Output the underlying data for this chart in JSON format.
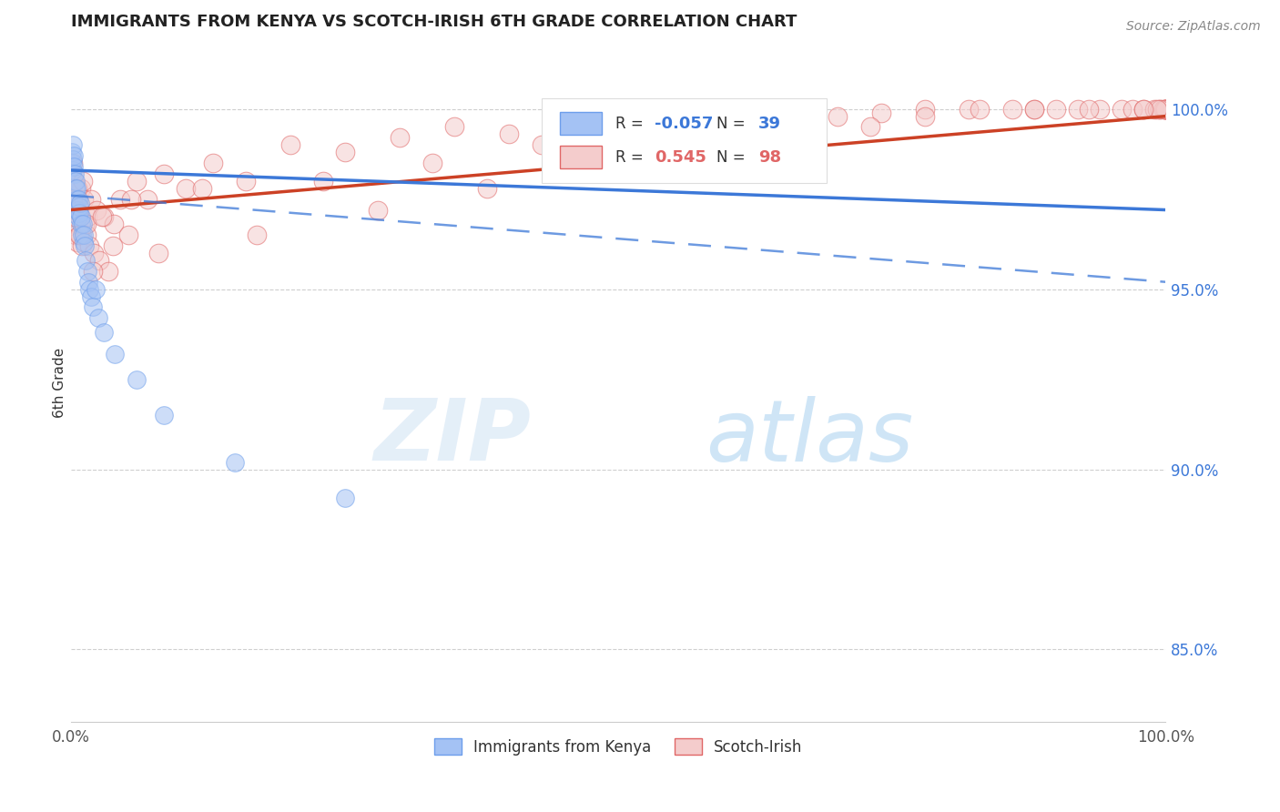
{
  "title": "IMMIGRANTS FROM KENYA VS SCOTCH-IRISH 6TH GRADE CORRELATION CHART",
  "source_text": "Source: ZipAtlas.com",
  "ylabel": "6th Grade",
  "watermark_zip": "ZIP",
  "watermark_atlas": "atlas",
  "x_min": 0.0,
  "x_max": 100.0,
  "y_min": 83.0,
  "y_max": 101.8,
  "y_ticks": [
    85.0,
    90.0,
    95.0,
    100.0
  ],
  "blue_R": -0.057,
  "blue_N": 39,
  "pink_R": 0.545,
  "pink_N": 98,
  "blue_fill": "#a4c2f4",
  "pink_fill": "#f4cccc",
  "blue_edge": "#6d9eeb",
  "pink_edge": "#e06666",
  "blue_line_color": "#3c78d8",
  "pink_line_color": "#cc4125",
  "legend_label_blue": "Immigrants from Kenya",
  "legend_label_pink": "Scotch-Irish",
  "blue_line_x0": 0.0,
  "blue_line_y0": 98.3,
  "blue_line_x1": 100.0,
  "blue_line_y1": 97.2,
  "pink_line_x0": 0.0,
  "pink_line_y0": 97.2,
  "pink_line_x1": 100.0,
  "pink_line_y1": 99.8,
  "dash_x0": 0.0,
  "dash_y0": 97.6,
  "dash_x1": 100.0,
  "dash_y1": 95.2,
  "blue_scatter_x": [
    0.05,
    0.08,
    0.12,
    0.15,
    0.18,
    0.22,
    0.28,
    0.32,
    0.38,
    0.42,
    0.48,
    0.52,
    0.58,
    0.62,
    0.68,
    0.72,
    0.78,
    0.82,
    0.88,
    0.92,
    0.98,
    1.05,
    1.12,
    1.18,
    1.25,
    1.35,
    1.45,
    1.55,
    1.65,
    1.8,
    2.0,
    2.2,
    2.5,
    3.0,
    4.0,
    6.0,
    8.5,
    15.0,
    25.0
  ],
  "blue_scatter_y": [
    98.5,
    98.8,
    99.0,
    98.3,
    98.6,
    98.7,
    98.4,
    98.2,
    97.8,
    98.0,
    97.5,
    97.8,
    97.2,
    97.5,
    97.0,
    97.3,
    97.1,
    97.4,
    96.8,
    97.0,
    96.5,
    96.8,
    96.3,
    96.5,
    96.2,
    95.8,
    95.5,
    95.2,
    95.0,
    94.8,
    94.5,
    95.0,
    94.2,
    93.8,
    93.2,
    92.5,
    91.5,
    90.2,
    89.2
  ],
  "pink_scatter_x": [
    0.05,
    0.08,
    0.12,
    0.15,
    0.18,
    0.22,
    0.28,
    0.32,
    0.38,
    0.42,
    0.48,
    0.55,
    0.62,
    0.68,
    0.75,
    0.82,
    0.92,
    1.02,
    1.12,
    1.25,
    1.38,
    1.52,
    1.68,
    1.85,
    2.05,
    2.3,
    2.6,
    2.95,
    3.4,
    3.9,
    4.5,
    5.2,
    6.0,
    7.0,
    8.5,
    10.5,
    13.0,
    16.0,
    20.0,
    25.0,
    30.0,
    35.0,
    40.0,
    45.0,
    50.0,
    55.0,
    60.0,
    65.0,
    70.0,
    74.0,
    78.0,
    82.0,
    86.0,
    88.0,
    90.0,
    92.0,
    94.0,
    96.0,
    97.0,
    98.0,
    99.0,
    99.5,
    100.0,
    100.0,
    100.0,
    100.0,
    100.0,
    99.8,
    99.5,
    99.2,
    0.35,
    0.55,
    0.78,
    1.05,
    1.4,
    2.0,
    2.8,
    3.8,
    5.5,
    8.0,
    12.0,
    17.0,
    23.0,
    28.0,
    33.0,
    38.0,
    43.0,
    48.0,
    53.0,
    58.0,
    63.0,
    68.0,
    73.0,
    78.0,
    83.0,
    88.0,
    93.0,
    98.0
  ],
  "pink_scatter_y": [
    98.2,
    97.5,
    98.5,
    97.8,
    97.2,
    98.0,
    97.5,
    96.8,
    97.2,
    96.5,
    97.0,
    96.3,
    97.5,
    96.8,
    97.2,
    96.5,
    97.8,
    96.2,
    97.5,
    96.8,
    96.5,
    97.0,
    96.2,
    97.5,
    96.0,
    97.2,
    95.8,
    97.0,
    95.5,
    96.8,
    97.5,
    96.5,
    98.0,
    97.5,
    98.2,
    97.8,
    98.5,
    98.0,
    99.0,
    98.8,
    99.2,
    99.5,
    99.3,
    99.6,
    99.5,
    99.7,
    99.8,
    99.6,
    99.8,
    99.9,
    100.0,
    100.0,
    100.0,
    100.0,
    100.0,
    100.0,
    100.0,
    100.0,
    100.0,
    100.0,
    100.0,
    100.0,
    100.0,
    100.0,
    100.0,
    100.0,
    100.0,
    100.0,
    100.0,
    100.0,
    97.0,
    97.8,
    96.5,
    98.0,
    96.8,
    95.5,
    97.0,
    96.2,
    97.5,
    96.0,
    97.8,
    96.5,
    98.0,
    97.2,
    98.5,
    97.8,
    99.0,
    98.5,
    99.2,
    98.8,
    99.5,
    99.2,
    99.5,
    99.8,
    100.0,
    100.0,
    100.0,
    100.0
  ]
}
